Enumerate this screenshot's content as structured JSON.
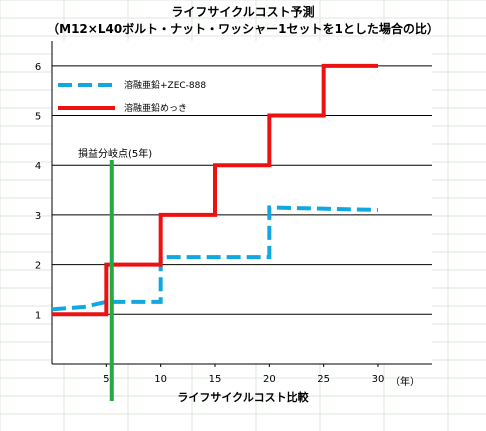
{
  "chart_data": {
    "type": "line",
    "title": "ライフサイクルコスト予測",
    "subtitle": "（M12×L40ボルト・ナット・ワッシャー1セットを1とした場合の比）",
    "xlabel": "ライフサイクルコスト比較",
    "x_unit": "（年）",
    "xlim": [
      0,
      30
    ],
    "ylim": [
      0,
      6.5
    ],
    "x_ticks": [
      "5",
      "10",
      "15",
      "20",
      "25",
      "30"
    ],
    "y_ticks": [
      "1",
      "2",
      "3",
      "4",
      "5",
      "6"
    ],
    "grid": "horizontal",
    "legend_position": "top-left",
    "series": [
      {
        "name": "溶融亜鉛+ZEC-888",
        "style": "dashed",
        "color": "#11a8e0",
        "x": [
          0,
          3,
          5,
          10,
          10,
          20,
          20,
          30
        ],
        "y": [
          1.1,
          1.15,
          1.25,
          1.25,
          2.15,
          2.15,
          3.15,
          3.1
        ]
      },
      {
        "name": "溶融亜鉛めっき",
        "style": "solid",
        "color": "#ee1111",
        "x": [
          0,
          5,
          5,
          10,
          10,
          15,
          15,
          20,
          20,
          25,
          25,
          30
        ],
        "y": [
          1,
          1,
          2,
          2,
          3,
          3,
          4,
          4,
          5,
          5,
          6,
          6
        ]
      }
    ],
    "annotations": [
      {
        "label": "損益分岐点(5年)",
        "x": 5.5,
        "color": "#22aa44"
      }
    ]
  }
}
